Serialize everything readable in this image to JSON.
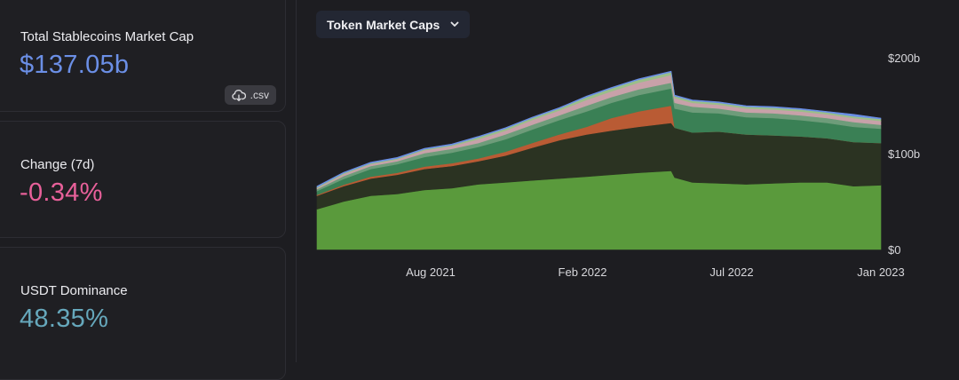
{
  "cards": [
    {
      "label": "Total Stablecoins Market Cap",
      "value": "$137.05b",
      "color": "#6b8fe6"
    },
    {
      "label": "Change (7d)",
      "value": "-0.34%",
      "color": "#e8609a"
    },
    {
      "label": "USDT Dominance",
      "value": "48.35%",
      "color": "#66a8bc"
    }
  ],
  "csv_button": {
    "label": ".csv",
    "icon": "cloud-download-icon"
  },
  "chart_selector": {
    "label": "Token Market Caps",
    "icon": "chevron-down-icon"
  },
  "chart_data": {
    "type": "area",
    "stacked": true,
    "title": "",
    "xlabel": "",
    "ylabel": "",
    "x_ticks": [
      "Aug 2021",
      "Feb 2022",
      "Jul 2022",
      "Jan 2023"
    ],
    "y_ticks": [
      "$0",
      "$100b",
      "$200b"
    ],
    "ylim": [
      0,
      200
    ],
    "x": [
      "2021-04",
      "2021-05",
      "2021-06",
      "2021-07",
      "2021-08",
      "2021-09",
      "2021-10",
      "2021-11",
      "2021-12",
      "2022-01",
      "2022-02",
      "2022-03",
      "2022-04",
      "2022-05-08",
      "2022-05-12",
      "2022-06",
      "2022-07",
      "2022-08",
      "2022-09",
      "2022-10",
      "2022-11",
      "2022-12",
      "2023-01"
    ],
    "series": [
      {
        "values": [
          42,
          50,
          56,
          58,
          62,
          64,
          68,
          70,
          72,
          74,
          76,
          78,
          80,
          82,
          75,
          70,
          69,
          68,
          69,
          70,
          70,
          66,
          67
        ],
        "color": "#5a9a3c"
      },
      {
        "values": [
          14,
          16,
          18,
          20,
          22,
          23,
          24,
          28,
          34,
          40,
          44,
          46,
          48,
          50,
          52,
          52,
          54,
          52,
          50,
          48,
          46,
          46,
          44
        ],
        "color": "#2b3322"
      },
      {
        "values": [
          1,
          1.5,
          2,
          2,
          2.5,
          3,
          3,
          4,
          5,
          6,
          8,
          13,
          16,
          18,
          0,
          0,
          0,
          0,
          0,
          0,
          0,
          0,
          0
        ],
        "color": "#b95b34"
      },
      {
        "values": [
          4,
          6,
          8,
          9,
          10,
          11,
          12,
          13,
          14,
          15,
          16,
          16,
          17,
          18,
          20,
          21,
          19,
          18,
          18,
          17,
          16,
          16,
          15
        ],
        "color": "#3a8055"
      },
      {
        "values": [
          2,
          3,
          3,
          3,
          4,
          4,
          4,
          5,
          5,
          5,
          6,
          6,
          6,
          6,
          6,
          6,
          5,
          5,
          5,
          5,
          5,
          5,
          4
        ],
        "color": "#6e9c7a"
      },
      {
        "values": [
          1,
          2,
          2,
          2,
          3,
          3,
          4,
          4,
          5,
          5,
          6,
          6,
          7,
          8,
          5,
          4,
          4,
          4,
          4,
          4,
          4,
          4,
          4
        ],
        "color": "#c8a1a9"
      },
      {
        "values": [
          1,
          1,
          1,
          1,
          1,
          1,
          2,
          2,
          2,
          2,
          3,
          3,
          3,
          3,
          2,
          2,
          2,
          2,
          2,
          2,
          2,
          2,
          2
        ],
        "color": "#9bbf8a"
      },
      {
        "values": [
          1,
          1,
          1,
          1,
          1,
          1,
          1,
          1,
          1,
          1,
          1,
          1,
          1,
          1,
          1,
          1,
          1,
          1,
          1,
          1,
          1,
          2,
          1
        ],
        "color": "#6b8fe6"
      }
    ]
  }
}
